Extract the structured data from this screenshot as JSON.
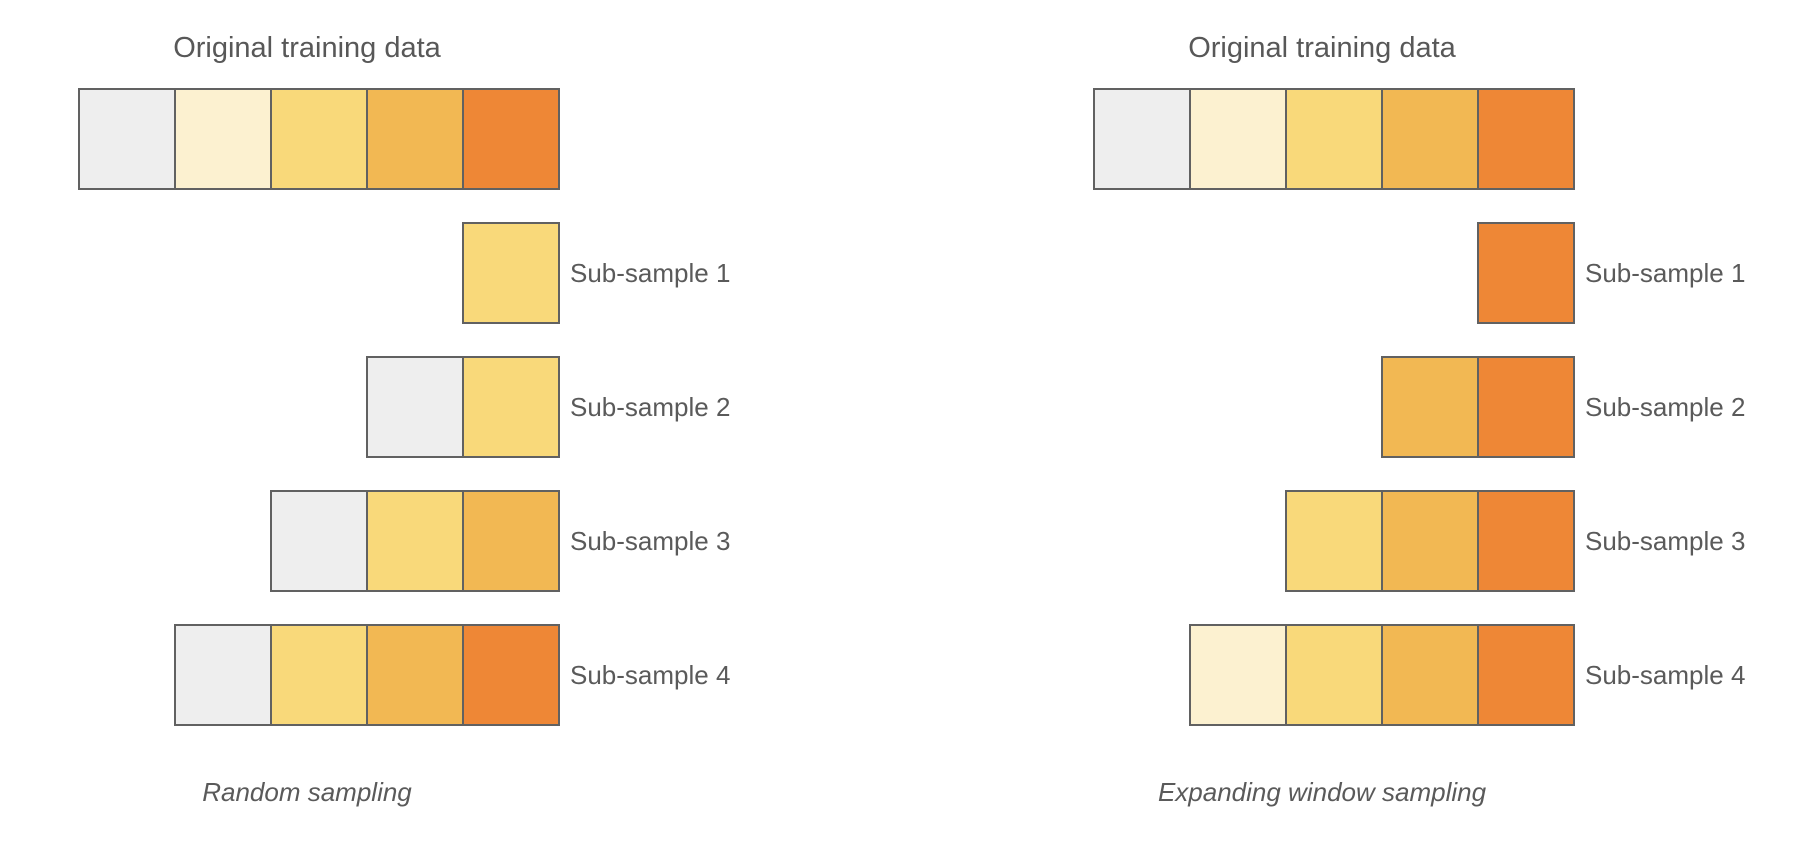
{
  "colors": {
    "c1": "#eeeeee",
    "c2": "#fcf1d0",
    "c3": "#f9d97a",
    "c4": "#f2b853",
    "c5": "#ee8736",
    "border": "#616161",
    "text": "#555555"
  },
  "panels": [
    {
      "title": "Original training data",
      "original": [
        "c1",
        "c2",
        "c3",
        "c4",
        "c5"
      ],
      "rows": [
        {
          "label": "Sub-sample 1",
          "cells": [
            "c3"
          ]
        },
        {
          "label": "Sub-sample 2",
          "cells": [
            "c1",
            "c3"
          ]
        },
        {
          "label": "Sub-sample 3",
          "cells": [
            "c1",
            "c3",
            "c4"
          ]
        },
        {
          "label": "Sub-sample 4",
          "cells": [
            "c1",
            "c3",
            "c4",
            "c5"
          ]
        }
      ],
      "caption": "Random sampling"
    },
    {
      "title": "Original training data",
      "original": [
        "c1",
        "c2",
        "c3",
        "c4",
        "c5"
      ],
      "rows": [
        {
          "label": "Sub-sample 1",
          "cells": [
            "c5"
          ]
        },
        {
          "label": "Sub-sample 2",
          "cells": [
            "c4",
            "c5"
          ]
        },
        {
          "label": "Sub-sample 3",
          "cells": [
            "c3",
            "c4",
            "c5"
          ]
        },
        {
          "label": "Sub-sample 4",
          "cells": [
            "c2",
            "c3",
            "c4",
            "c5"
          ]
        }
      ],
      "caption": "Expanding window sampling"
    }
  ]
}
